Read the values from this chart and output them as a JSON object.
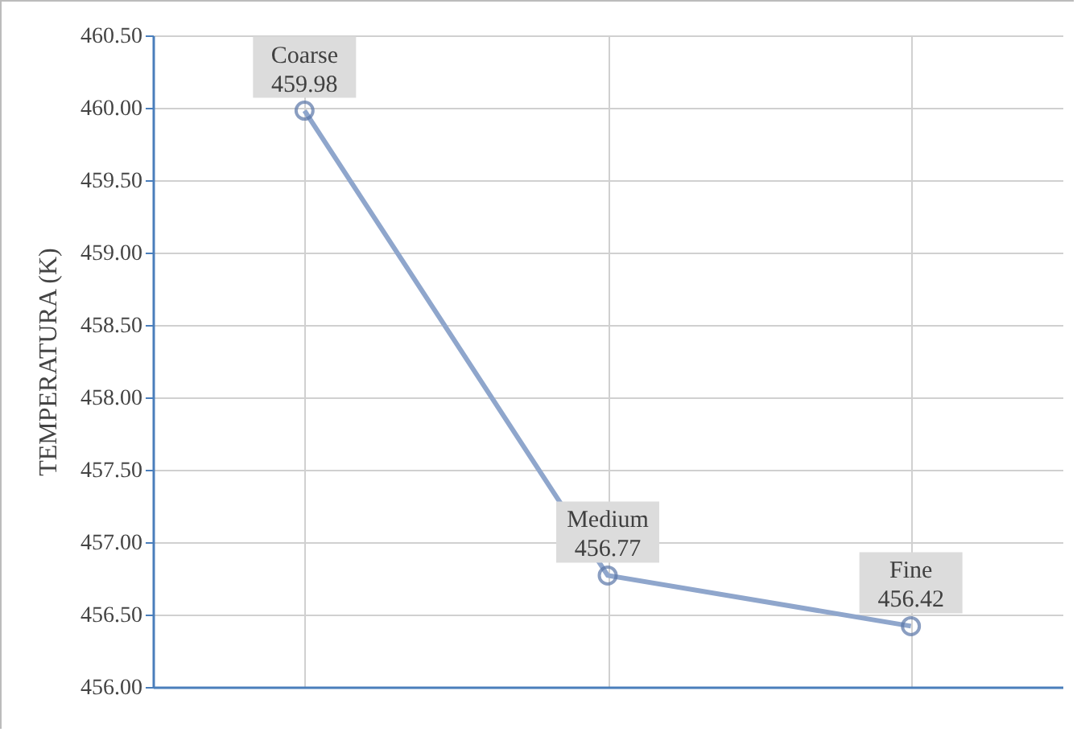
{
  "chart_data": {
    "type": "line",
    "ylabel": "TEMPERATURA (K)",
    "categories": [
      "Coarse",
      "Medium",
      "Fine"
    ],
    "series": [
      {
        "color": "#8fa6cc",
        "values": [
          459.98,
          456.77,
          456.42
        ]
      }
    ],
    "ylim": [
      456,
      460.5
    ],
    "yticks": [
      {
        "value": 456,
        "label": "456.00"
      },
      {
        "value": 456.5,
        "label": "456.50"
      },
      {
        "value": 457,
        "label": "457.00"
      },
      {
        "value": 457.5,
        "label": "457.50"
      },
      {
        "value": 458,
        "label": "458.00"
      },
      {
        "value": 458.5,
        "label": "458.50"
      },
      {
        "value": 459,
        "label": "459.00"
      },
      {
        "value": 459.5,
        "label": "459.50"
      },
      {
        "value": 460,
        "label": "460.00"
      },
      {
        "value": 460.5,
        "label": "460.50"
      }
    ],
    "grid": true,
    "marker": "circle",
    "line_style": "solid",
    "data_labels": true,
    "tick_labels": "y"
  }
}
